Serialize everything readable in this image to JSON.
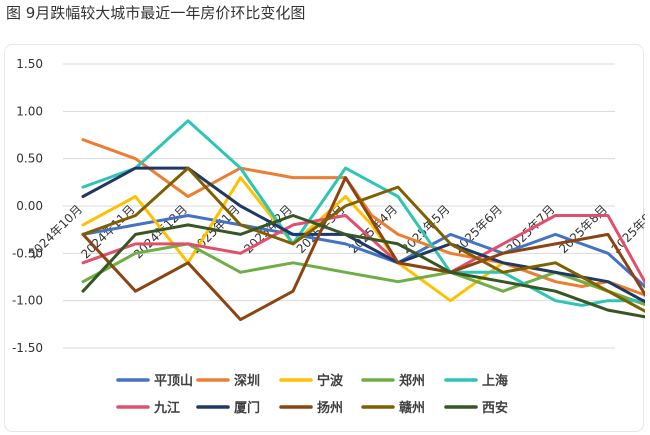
{
  "figure_title": "图 9月跌幅较大城市最近一年房价环比变化图",
  "chart_data": {
    "type": "line",
    "categories": [
      "2024年10月",
      "2024年11月",
      "2024年12月",
      "2025年1月",
      "2025年2月",
      "2025年3月",
      "2025年4月",
      "2025年5月",
      "2025年6月",
      "2025年7月",
      "2025年8月",
      "2025年9月"
    ],
    "tick_label_categories": [
      "2024年10月",
      "2024年11月",
      "2024年12月",
      "2025年1月",
      "2025年2月",
      "2025年3月",
      "2025年4月",
      "2025年5月",
      "2025年6月",
      "2025年7月",
      "2025年8月",
      "2025年9月"
    ],
    "x": [
      0,
      0.5,
      1,
      1.5,
      2,
      2.5,
      3,
      3.5,
      4,
      4.5,
      5,
      5.5,
      6,
      6.5,
      7,
      7.5,
      8,
      8.5,
      9,
      9.5,
      10,
      10.5,
      11
    ],
    "ylim": [
      -1.5,
      1.5
    ],
    "yticks": [
      1.5,
      1.0,
      0.5,
      0.0,
      -0.5,
      -1.0,
      -1.5
    ],
    "ytick_labels": [
      "1.50",
      "1.00",
      "0.50",
      "0.00",
      "-0.50",
      "-1.00",
      "-1.50"
    ],
    "grid": true,
    "legend_position": "bottom",
    "series": [
      {
        "name": "平顶山",
        "color": "#4472c4",
        "values": [
          -0.3,
          -0.25,
          -0.2,
          -0.15,
          -0.1,
          -0.15,
          -0.2,
          -0.25,
          -0.3,
          -0.35,
          -0.4,
          -0.5,
          -0.6,
          -0.45,
          -0.3,
          -0.4,
          -0.5,
          -0.4,
          -0.3,
          -0.4,
          -0.5,
          -0.75,
          -1.0
        ]
      },
      {
        "name": "深圳",
        "color": "#ed7d31",
        "values": [
          0.7,
          0.6,
          0.5,
          0.3,
          0.1,
          0.25,
          0.4,
          0.35,
          0.3,
          0.3,
          0.3,
          -0.1,
          -0.3,
          -0.4,
          -0.5,
          -0.55,
          -0.6,
          -0.7,
          -0.8,
          -0.85,
          -0.8,
          -0.9,
          -1.0
        ]
      },
      {
        "name": "宁波",
        "color": "#ffc000",
        "values": [
          -0.2,
          -0.05,
          0.1,
          -0.25,
          -0.6,
          -0.15,
          0.3,
          -0.05,
          -0.4,
          -0.15,
          0.1,
          -0.2,
          -0.6,
          -0.8,
          -1.0,
          -0.8,
          -0.6,
          -0.65,
          -0.7,
          -0.8,
          -0.9,
          -1.0,
          -1.1
        ]
      },
      {
        "name": "郑州",
        "color": "#70ad47",
        "values": [
          -0.8,
          -0.65,
          -0.5,
          -0.45,
          -0.4,
          -0.55,
          -0.7,
          -0.65,
          -0.6,
          -0.65,
          -0.7,
          -0.75,
          -0.8,
          -0.75,
          -0.7,
          -0.8,
          -0.9,
          -0.8,
          -0.7,
          -0.8,
          -0.9,
          -1.0,
          -1.1
        ]
      },
      {
        "name": "上海",
        "color": "#2ec4b6",
        "values": [
          0.2,
          0.3,
          0.4,
          0.65,
          0.9,
          0.65,
          0.4,
          0.0,
          -0.4,
          0.0,
          0.4,
          0.25,
          0.1,
          -0.3,
          -0.7,
          -0.7,
          -0.7,
          -0.85,
          -1.0,
          -1.05,
          -1.0,
          -1.0,
          -1.0
        ]
      },
      {
        "name": "九江",
        "color": "#e0506e",
        "values": [
          -0.6,
          -0.5,
          -0.4,
          -0.4,
          -0.4,
          -0.45,
          -0.5,
          -0.35,
          -0.2,
          -0.15,
          -0.1,
          -0.35,
          -0.6,
          -0.65,
          -0.7,
          -0.55,
          -0.4,
          -0.25,
          -0.1,
          -0.1,
          -0.1,
          -0.6,
          -1.1
        ]
      },
      {
        "name": "厦门",
        "color": "#1f3864",
        "values": [
          0.1,
          0.25,
          0.4,
          0.4,
          0.4,
          0.2,
          0.0,
          -0.15,
          -0.3,
          -0.3,
          -0.3,
          -0.45,
          -0.6,
          -0.5,
          -0.4,
          -0.5,
          -0.6,
          -0.65,
          -0.7,
          -0.75,
          -0.8,
          -0.95,
          -1.1
        ]
      },
      {
        "name": "扬州",
        "color": "#8b4513",
        "values": [
          -0.3,
          -0.6,
          -0.9,
          -0.75,
          -0.6,
          -0.9,
          -1.2,
          -1.05,
          -0.9,
          -0.3,
          0.3,
          -0.15,
          -0.6,
          -0.65,
          -0.7,
          -0.6,
          -0.5,
          -0.45,
          -0.4,
          -0.35,
          -0.3,
          -0.75,
          -1.2
        ]
      },
      {
        "name": "赣州",
        "color": "#7f6000",
        "values": [
          -0.3,
          -0.2,
          -0.1,
          0.15,
          0.4,
          0.1,
          -0.2,
          -0.3,
          -0.4,
          -0.2,
          0.0,
          0.1,
          0.2,
          -0.1,
          -0.4,
          -0.55,
          -0.7,
          -0.65,
          -0.6,
          -0.75,
          -0.9,
          -1.05,
          -1.2
        ]
      },
      {
        "name": "西安",
        "color": "#375623",
        "values": [
          -0.9,
          -0.6,
          -0.3,
          -0.25,
          -0.2,
          -0.25,
          -0.3,
          -0.2,
          -0.1,
          -0.2,
          -0.3,
          -0.35,
          -0.4,
          -0.55,
          -0.7,
          -0.75,
          -0.8,
          -0.85,
          -0.9,
          -1.0,
          -1.1,
          -1.15,
          -1.2
        ]
      }
    ]
  }
}
